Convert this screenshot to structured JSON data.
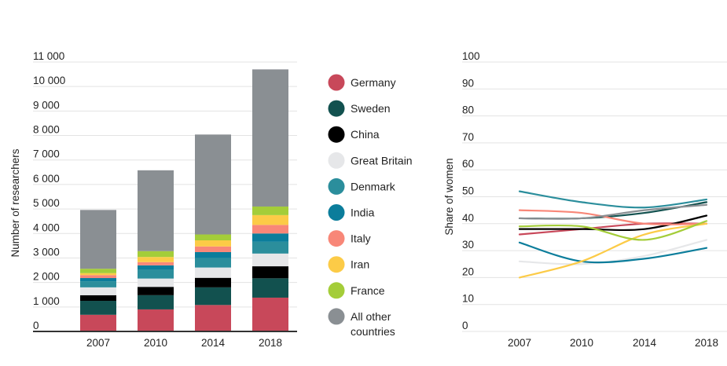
{
  "chart_data": [
    {
      "type": "bar",
      "stacked": true,
      "categories": [
        "2007",
        "2010",
        "2014",
        "2018"
      ],
      "ylabel": "Number of researchers",
      "ylim": [
        0,
        11000
      ],
      "yticks": [
        0,
        1000,
        2000,
        3000,
        4000,
        5000,
        6000,
        7000,
        8000,
        9000,
        10000,
        11000
      ],
      "ytick_labels": [
        "0",
        "1 000",
        "2 000",
        "3 000",
        "4 000",
        "5 000",
        "6 000",
        "7 000",
        "8 000",
        "9 000",
        "10 000",
        "11 000"
      ],
      "grid": true,
      "legend_position": "right",
      "series": [
        {
          "name": "Germany",
          "color": "#c8485a",
          "values": [
            680,
            900,
            1080,
            1380
          ]
        },
        {
          "name": "Sweden",
          "color": "#12514f",
          "values": [
            570,
            580,
            720,
            790
          ]
        },
        {
          "name": "China",
          "color": "#000000",
          "values": [
            230,
            340,
            390,
            490
          ]
        },
        {
          "name": "Great Britain",
          "color": "#e6e7e9",
          "values": [
            320,
            340,
            420,
            520
          ]
        },
        {
          "name": "Denmark",
          "color": "#2b8e9c",
          "values": [
            250,
            360,
            390,
            480
          ]
        },
        {
          "name": "India",
          "color": "#0b7d9b",
          "values": [
            130,
            180,
            240,
            340
          ]
        },
        {
          "name": "Italy",
          "color": "#f88778",
          "values": [
            120,
            130,
            230,
            350
          ]
        },
        {
          "name": "Iran",
          "color": "#fccb47",
          "values": [
            80,
            210,
            250,
            400
          ]
        },
        {
          "name": "France",
          "color": "#a4cd39",
          "values": [
            180,
            240,
            240,
            350
          ]
        },
        {
          "name": "All other countries",
          "label_lines": [
            "All other",
            "countries"
          ],
          "color": "#8a8f93",
          "values": [
            2400,
            3300,
            4080,
            5600
          ]
        }
      ]
    },
    {
      "type": "line",
      "x": [
        "2007",
        "2010",
        "2014",
        "2018"
      ],
      "ylabel": "Share of women",
      "ylim": [
        0,
        100
      ],
      "yticks": [
        0,
        10,
        20,
        30,
        40,
        50,
        60,
        70,
        80,
        90,
        100
      ],
      "grid": true,
      "series": [
        {
          "name": "Germany",
          "color": "#c8485a",
          "values": [
            36,
            38,
            40,
            40
          ]
        },
        {
          "name": "Sweden",
          "color": "#12514f",
          "values": [
            42,
            42,
            44,
            48
          ]
        },
        {
          "name": "China",
          "color": "#000000",
          "values": [
            38,
            38,
            38,
            43
          ]
        },
        {
          "name": "Great Britain",
          "color": "#e6e7e9",
          "values": [
            26,
            25,
            28,
            34
          ]
        },
        {
          "name": "Denmark",
          "color": "#2b8e9c",
          "values": [
            52,
            48,
            46,
            49
          ]
        },
        {
          "name": "India",
          "color": "#0b7d9b",
          "values": [
            33,
            26,
            27,
            31
          ]
        },
        {
          "name": "Italy",
          "color": "#f88778",
          "values": [
            45,
            44,
            40,
            40
          ]
        },
        {
          "name": "Iran",
          "color": "#fccb47",
          "values": [
            20,
            26,
            36,
            40
          ]
        },
        {
          "name": "France",
          "color": "#a4cd39",
          "values": [
            39,
            39,
            34,
            41
          ]
        },
        {
          "name": "All other countries",
          "color": "#8a8f93",
          "values": [
            42,
            42,
            45,
            47
          ]
        }
      ]
    }
  ]
}
